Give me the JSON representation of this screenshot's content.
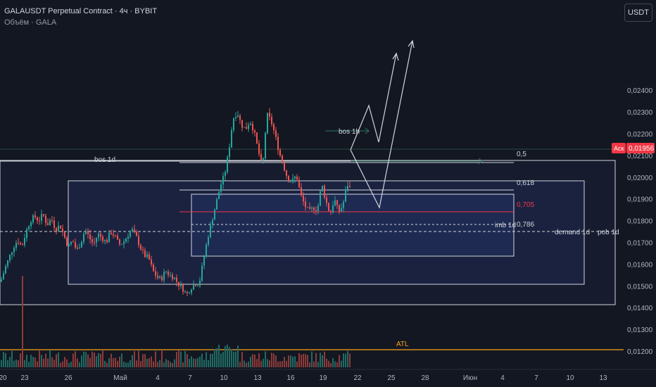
{
  "header": {
    "symbol_line": "GALAUSDT Perpetual Contract · 4ч · BYBIT",
    "volume_line": "Объём · GALA",
    "currency_button": "USDT"
  },
  "price_axis": {
    "labels": [
      "0,02400",
      "0,02300",
      "0,02200",
      "0,02100",
      "0,02000",
      "0,01900",
      "0,01800",
      "0,01700",
      "0,01600",
      "0,01500",
      "0,01400",
      "0,01300",
      "0,01200"
    ],
    "ask_label": "Аск",
    "ask_price": "0,01956",
    "ask_color": "#f23645"
  },
  "time_axis": {
    "labels": [
      "20",
      "23",
      "26",
      "Май",
      "4",
      "7",
      "10",
      "13",
      "16",
      "19",
      "22",
      "25",
      "28",
      "Июн",
      "4",
      "7",
      "10",
      "13"
    ]
  },
  "annotations": {
    "bos_1d": "bos 1d",
    "bos_1h": "bos 1h",
    "fib_05": "0,5",
    "fib_0618": "0,618",
    "fib_0705": "0,705",
    "fib_0786": "0,786",
    "imb_1d": "imb 1d",
    "demand_1d": "demand 1d",
    "pob_1d": "pob 1d",
    "atl": "ATL"
  },
  "colors": {
    "background": "#131722",
    "candle_up": "#26a69a",
    "candle_down": "#ef5350",
    "atl_line": "#f7a21b",
    "fib_0705": "#f23645",
    "box_fill": "#1a2547"
  },
  "chart_data": {
    "type": "candlestick",
    "interval": "4h",
    "y_axis": {
      "min": 0.0116,
      "max": 0.0243,
      "ticks": [
        0.024,
        0.023,
        0.022,
        0.021,
        0.02,
        0.019,
        0.018,
        0.017,
        0.016,
        0.015,
        0.014,
        0.013,
        0.012
      ]
    },
    "keyframes": [
      [
        0,
        0.0152
      ],
      [
        6,
        0.0158
      ],
      [
        12,
        0.0163
      ],
      [
        18,
        0.0168
      ],
      [
        24,
        0.0171
      ],
      [
        30,
        0.0168
      ],
      [
        36,
        0.0175
      ],
      [
        42,
        0.018
      ],
      [
        48,
        0.0182
      ],
      [
        54,
        0.018
      ],
      [
        60,
        0.0183
      ],
      [
        66,
        0.0178
      ],
      [
        72,
        0.0181
      ],
      [
        78,
        0.0176
      ],
      [
        84,
        0.0178
      ],
      [
        90,
        0.0173
      ],
      [
        96,
        0.0168
      ],
      [
        102,
        0.0171
      ],
      [
        108,
        0.0166
      ],
      [
        114,
        0.017
      ],
      [
        120,
        0.0176
      ],
      [
        126,
        0.0172
      ],
      [
        132,
        0.0169
      ],
      [
        138,
        0.0174
      ],
      [
        144,
        0.0172
      ],
      [
        150,
        0.017
      ],
      [
        156,
        0.0175
      ],
      [
        162,
        0.0173
      ],
      [
        168,
        0.0169
      ],
      [
        174,
        0.017
      ],
      [
        180,
        0.0173
      ],
      [
        186,
        0.0176
      ],
      [
        192,
        0.0173
      ],
      [
        198,
        0.0168
      ],
      [
        204,
        0.0164
      ],
      [
        210,
        0.0163
      ],
      [
        216,
        0.0157
      ],
      [
        222,
        0.0154
      ],
      [
        228,
        0.0153
      ],
      [
        234,
        0.0157
      ],
      [
        240,
        0.0155
      ],
      [
        246,
        0.0154
      ],
      [
        252,
        0.0151
      ],
      [
        258,
        0.0149
      ],
      [
        264,
        0.0146
      ],
      [
        270,
        0.0149
      ],
      [
        276,
        0.0151
      ],
      [
        282,
        0.0151
      ],
      [
        288,
        0.0162
      ],
      [
        294,
        0.0172
      ],
      [
        300,
        0.018
      ],
      [
        306,
        0.0188
      ],
      [
        312,
        0.0196
      ],
      [
        318,
        0.0201
      ],
      [
        324,
        0.0212
      ],
      [
        330,
        0.0227
      ],
      [
        336,
        0.023
      ],
      [
        342,
        0.0224
      ],
      [
        348,
        0.0222
      ],
      [
        354,
        0.0226
      ],
      [
        360,
        0.0221
      ],
      [
        366,
        0.0212
      ],
      [
        372,
        0.0204
      ],
      [
        378,
        0.0229
      ],
      [
        384,
        0.0226
      ],
      [
        390,
        0.0219
      ],
      [
        396,
        0.0211
      ],
      [
        402,
        0.0205
      ],
      [
        408,
        0.0199
      ],
      [
        414,
        0.0198
      ],
      [
        420,
        0.0201
      ],
      [
        426,
        0.0192
      ],
      [
        432,
        0.0187
      ],
      [
        438,
        0.0184
      ],
      [
        444,
        0.0186
      ],
      [
        450,
        0.0185
      ],
      [
        456,
        0.0197
      ],
      [
        462,
        0.0189
      ],
      [
        468,
        0.0183
      ],
      [
        474,
        0.019
      ],
      [
        480,
        0.0184
      ],
      [
        486,
        0.0187
      ],
      [
        492,
        0.0197
      ],
      [
        498,
        0.0194
      ]
    ],
    "volume_scale_note": "relative volume bars along bottom pane"
  }
}
